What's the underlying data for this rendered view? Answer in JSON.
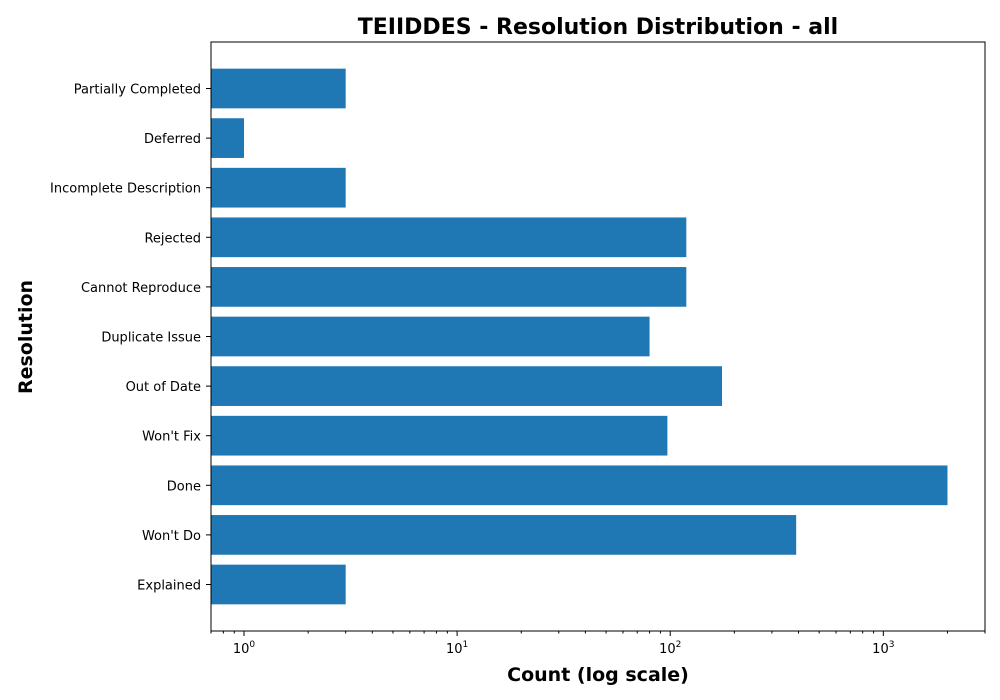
{
  "chart_data": {
    "type": "bar",
    "orientation": "horizontal",
    "title": "TEIIDDES - Resolution Distribution - all",
    "xlabel": "Count (log scale)",
    "ylabel": "Resolution",
    "xscale": "log",
    "xlim": [
      0.7,
      3000
    ],
    "x_ticks": [
      {
        "value": 1,
        "base": "10",
        "exp": "0"
      },
      {
        "value": 10,
        "base": "10",
        "exp": "1"
      },
      {
        "value": 100,
        "base": "10",
        "exp": "2"
      },
      {
        "value": 1000,
        "base": "10",
        "exp": "3"
      }
    ],
    "categories": [
      "Explained",
      "Won't Do",
      "Done",
      "Won't Fix",
      "Out of Date",
      "Duplicate Issue",
      "Cannot Reproduce",
      "Rejected",
      "Incomplete Description",
      "Deferred",
      "Partially Completed"
    ],
    "values": [
      3,
      390,
      2000,
      97,
      175,
      80,
      119,
      119,
      3,
      1,
      3
    ],
    "bar_color": "#1f77b4",
    "grid": false
  }
}
